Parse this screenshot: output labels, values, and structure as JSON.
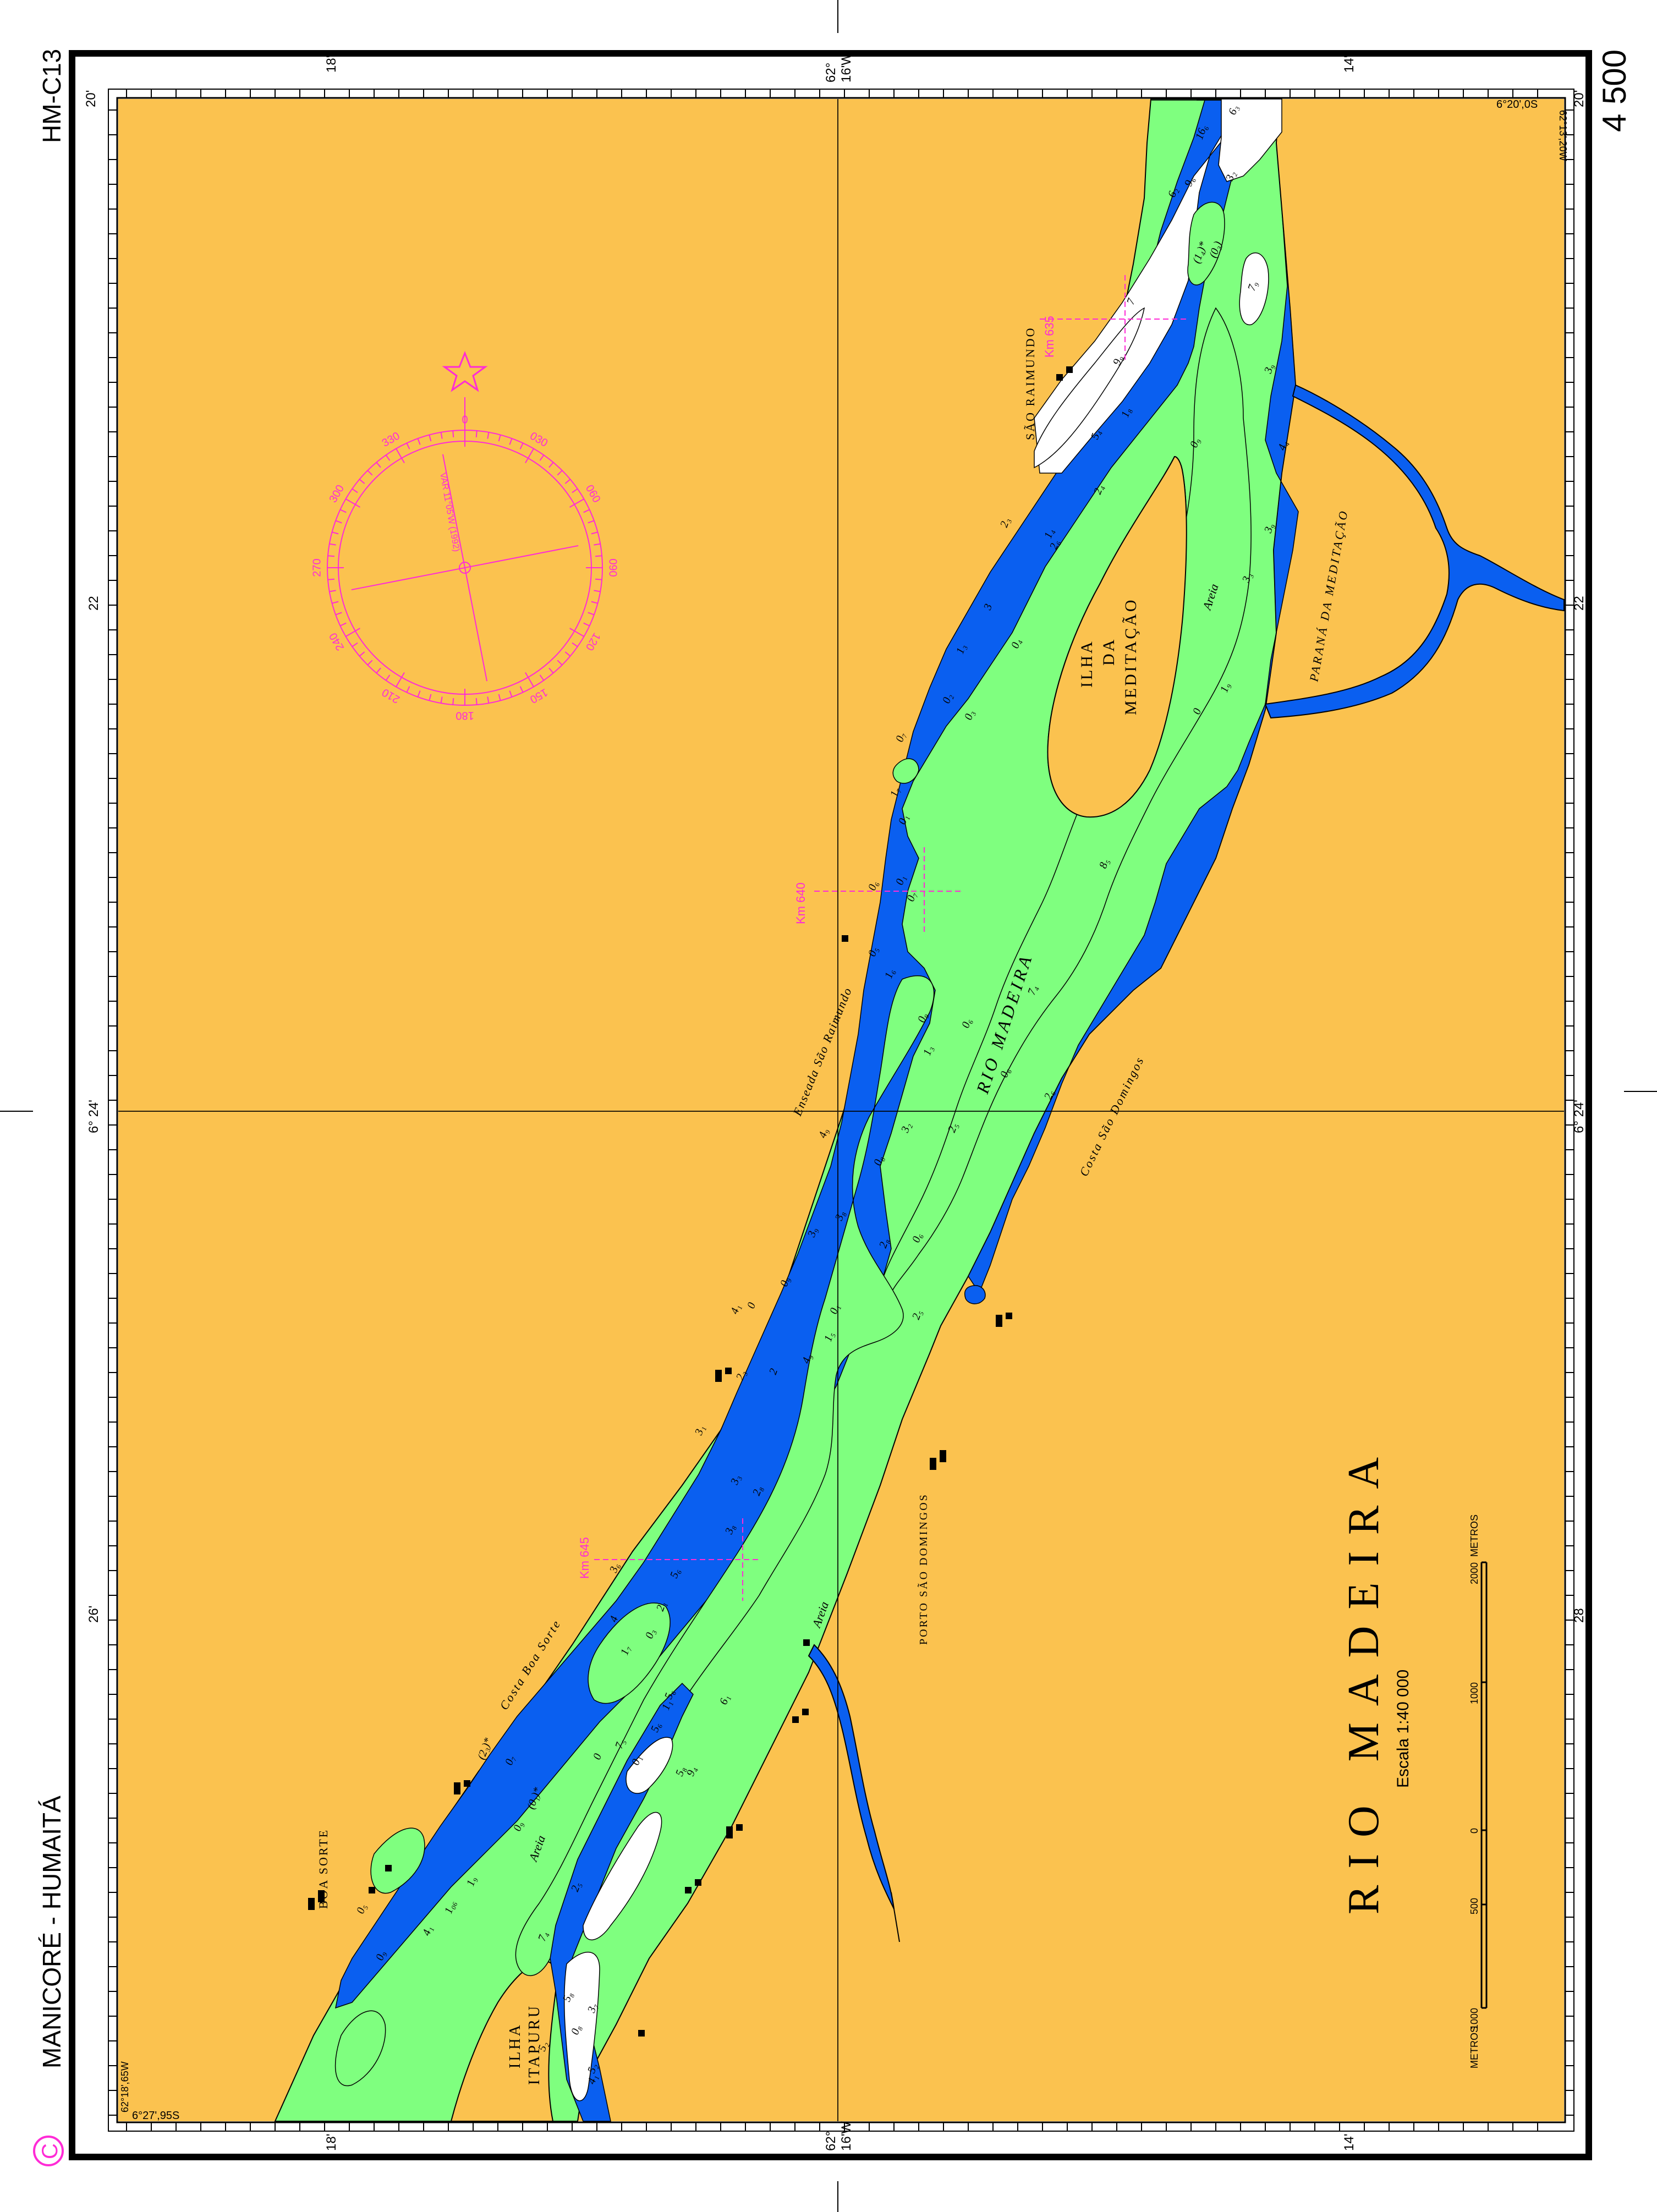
{
  "chart": {
    "id": "HM-C13",
    "route": "MANICORÉ - HUMAITÁ",
    "number": "4 500",
    "logo_letter": "C",
    "title": "RIO MADEIRA",
    "scale_text": "Escala 1:40 000",
    "colors": {
      "land": "#fbc24f",
      "shallow": "#7fff7f",
      "deep": "#0a5ff0",
      "drying": "#ffffff",
      "magenta": "#ff2bd6",
      "frame": "#000000"
    }
  },
  "graticule": {
    "lon_top": [
      "20'",
      "18'",
      "62°\n16'W",
      "14'",
      "20'"
    ],
    "lat_left": [
      "22",
      "6° 24'",
      "26'"
    ],
    "lat_right": [
      "22",
      "6° 24'",
      "28"
    ],
    "lon_bottom": [
      "18'",
      "62°\n16'W",
      "14'"
    ],
    "labels": {
      "top_left": "20'",
      "top_18": "18'",
      "top_62": "62°",
      "top_16w": "16'W",
      "top_14": "14'",
      "top_right": "20'",
      "left_22": "22",
      "left_24": "6° 24'",
      "left_26": "26'",
      "right_22": "22",
      "right_24": "6° 24'",
      "right_28": "28",
      "bottom_18": "18'",
      "bottom_62": "62°",
      "bottom_16w": "16'W",
      "bottom_14": "14'",
      "corner_tr_lat": "6°20',0S",
      "corner_tr_lon": "62°13',20W",
      "corner_bl_lon": "62°18',65W",
      "corner_bl_lat": "6°27',95S"
    }
  },
  "place_names": {
    "sao_raimundo": "SÃO RAIMUNDO",
    "ilha_meditacao": [
      "ILHA",
      "DA",
      "MEDITAÇÃO"
    ],
    "parana_meditacao": "PARANÁ DA MEDITAÇÃO",
    "rio_madeira_river": "RIO MADEIRA",
    "enseada": "Enseada São Raimundo",
    "costa_sao_domingos": "Costa São Domingos",
    "costa_boa_sorte": "Costa Boa Sorte",
    "porto_sao_domingos": "PORTO SÃO DOMINGOS",
    "boa_sorte": "BOA SORTE",
    "ilha_itapuru": [
      "ILHA",
      "ITAPURU"
    ],
    "areia": "Areia"
  },
  "kilometer_marks": [
    "Km 635",
    "Km 640",
    "Km 645"
  ],
  "compass": {
    "variation_text": "VAR 11°05'W (1992)",
    "bearings": [
      "0",
      "030",
      "060",
      "090",
      "120",
      "150",
      "180",
      "210",
      "240",
      "270",
      "300",
      "330"
    ]
  },
  "scale_bar": {
    "units": "METROS",
    "ticks": [
      "1000",
      "500",
      "0",
      "1000",
      "2000"
    ]
  },
  "soundings": [
    "6₃",
    "16₆",
    "9₆",
    "6₂",
    "3₂",
    "(1₄)*",
    "(0₃)",
    "7₉",
    "7",
    "9₉",
    "5₄",
    "1₈",
    "2₄",
    "0₉",
    "3₉",
    "4₄",
    "3₉",
    "3₃",
    "1₉",
    "0",
    "2₆",
    "1₄",
    "2₃",
    "3",
    "0₄",
    "1₃",
    "0₂",
    "0₃",
    "0₇",
    "1₇",
    "0₁",
    "0₁",
    "0₆",
    "0₇",
    "0₅",
    "1₆",
    "7₄",
    "2₆",
    "0₆",
    "8₅",
    "0₆",
    "0₉",
    "1₃",
    "2₅",
    "3₂",
    "4₉",
    "0₈",
    "3₈",
    "3₉",
    "2₈",
    "0₆",
    "2₅",
    "0₁",
    "0₉",
    "0",
    "4₁",
    "1₅",
    "4₉",
    "2",
    "2₃",
    "3₁",
    "3₃",
    "2₈",
    "3₈",
    "5₆",
    "3₆",
    "2₁",
    "0₃",
    "4",
    "1₇",
    "5₆",
    "6₁",
    "1₁",
    "5₆",
    "7₅",
    "0₁",
    "0",
    "9₄",
    "5₈",
    "0₇",
    "(2₃)*",
    "(0₁)*",
    "0₉",
    "2₅",
    "7₄",
    "1₉",
    "1₀₆",
    "4₁",
    "0₅",
    "0₉",
    "5₈",
    "3₇",
    "0₈",
    "5₂",
    "5₂",
    "4₁"
  ]
}
